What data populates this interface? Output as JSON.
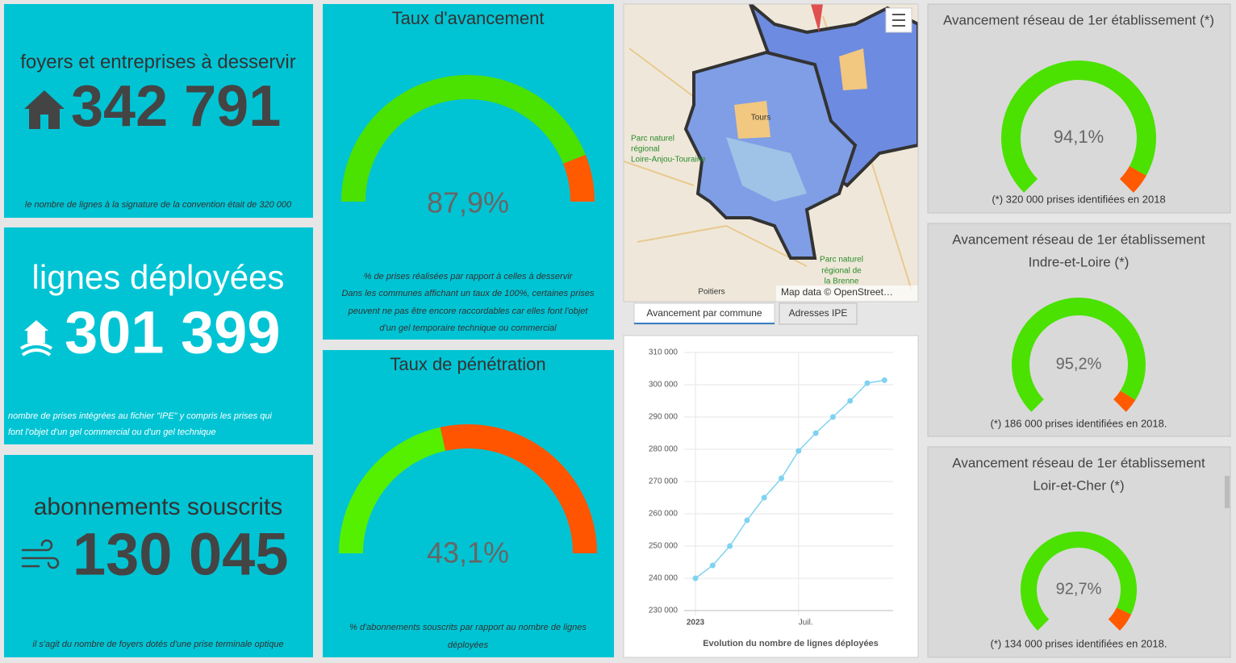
{
  "indicators": [
    {
      "title": "foyers et entreprises à desservir",
      "value": "342 791",
      "note": [
        "le nombre de lignes à la signature de la convention était de 320 000"
      ]
    },
    {
      "title": "lignes déployées",
      "value": "301 399",
      "note": [
        "nombre de prises intégrées au fichier \"IPE\" y compris les prises qui",
        "font l'objet d'un gel commercial ou d'un gel technique"
      ]
    },
    {
      "title": "abonnements souscrits",
      "value": "130 045",
      "note": [
        "il s'agit du nombre de foyers dotés d'une prise terminale optique"
      ]
    }
  ],
  "gauges": [
    {
      "title": [
        "Taux d'avancement"
      ],
      "value": 87.9,
      "label": "87,9%",
      "note": [
        "% de prises réalisées par rapport à celles à desservir",
        "Dans les communes affichant un taux de 100%, certaines prises",
        "peuvent ne pas être encore raccordables car elles font l'objet",
        "d'un gel temporaire technique ou commercial"
      ]
    },
    {
      "title": [
        "Taux de pénétration"
      ],
      "value": 43.1,
      "label": "43,1%",
      "note": [
        "% d'abonnements souscrits par rapport au nombre de lignes",
        "déployées"
      ]
    },
    {
      "title": [
        "Avancement réseau de 1er établissement (*)"
      ],
      "value": 94.1,
      "label": "94,1%",
      "note": [
        "(*) 320 000 prises identifiées en 2018"
      ]
    },
    {
      "title": [
        "Avancement réseau de 1er établissement",
        "Indre-et-Loire (*)"
      ],
      "value": 95.2,
      "label": "95,2%",
      "note": [
        "(*) 186 000 prises identifiées en 2018."
      ]
    },
    {
      "title": [
        "Avancement réseau de 1er établissement",
        "Loir-et-Cher (*)"
      ],
      "value": 92.7,
      "label": "92,7%",
      "note": [
        "(*) 134 000 prises identifiées en 2018."
      ]
    }
  ],
  "map": {
    "labels": [
      [
        "Tours"
      ],
      [
        "Parc naturel",
        "régional",
        "Loire-Anjou-Touraine"
      ],
      [
        "Parc naturel",
        "régional de",
        "la Brenne"
      ],
      [
        "Poitiers"
      ]
    ],
    "attribution": "Map data © OpenStreet…"
  },
  "tabs": [
    "Avancement par commune",
    "Adresses IPE"
  ],
  "chart_data": {
    "type": "line",
    "xlabel": "Evolution du nombre de lignes déployées",
    "x": [
      "2023-01",
      "2023-02",
      "2023-03",
      "2023-04",
      "2023-05",
      "2023-06",
      "2023-07",
      "2023-08",
      "2023-09",
      "2023-10",
      "2023-11",
      "2023-12"
    ],
    "values": [
      240000,
      244000,
      250000,
      258000,
      265000,
      271000,
      279500,
      285000,
      290000,
      295000,
      300500,
      301399
    ],
    "color": "#7fd3f0",
    "xticks": [
      {
        "value": "2023-01",
        "label": "2023"
      },
      {
        "value": "2023-07",
        "label": "Juil."
      }
    ],
    "ylim": [
      230000,
      310000
    ],
    "yticks": [
      {
        "value": 230000,
        "label": "230 000"
      },
      {
        "value": 240000,
        "label": "240 000"
      },
      {
        "value": 250000,
        "label": "250 000"
      },
      {
        "value": 260000,
        "label": "260 000"
      },
      {
        "value": 270000,
        "label": "270 000"
      },
      {
        "value": 280000,
        "label": "280 000"
      },
      {
        "value": 290000,
        "label": "290 000"
      },
      {
        "value": 300000,
        "label": "300 000"
      },
      {
        "value": 310000,
        "label": "310 000"
      }
    ],
    "grid": true
  }
}
